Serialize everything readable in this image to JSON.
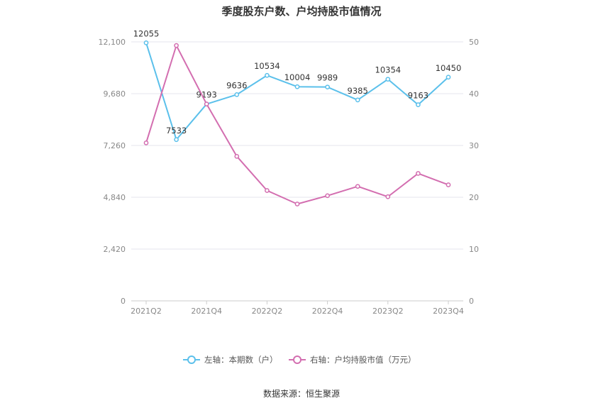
{
  "chart_data": {
    "type": "line",
    "title": "季度股东户数、户均持股市值情况",
    "categories": [
      "2021Q2",
      "2021Q3",
      "2021Q4",
      "2022Q1",
      "2022Q2",
      "2022Q3",
      "2022Q4",
      "2023Q1",
      "2023Q2",
      "2023Q3",
      "2023Q4"
    ],
    "x_tick_labels": [
      "2021Q2",
      "2021Q4",
      "2022Q2",
      "2022Q4",
      "2023Q2",
      "2023Q4"
    ],
    "left_axis": {
      "ylim": [
        0,
        12100
      ],
      "ticks": [
        "0",
        "2,420",
        "4,840",
        "7,260",
        "9,680",
        "12,100"
      ]
    },
    "right_axis": {
      "ylim": [
        0,
        50
      ],
      "ticks": [
        "0",
        "10",
        "20",
        "30",
        "40",
        "50"
      ]
    },
    "series": [
      {
        "name": "左轴：本期数（户）",
        "axis": "left",
        "color": "#5bc0eb",
        "values": [
          12055,
          7533,
          9193,
          9636,
          10534,
          10004,
          9989,
          9385,
          10354,
          9163,
          10450
        ],
        "labels": [
          "12055",
          "7533",
          "9193",
          "9636",
          "10534",
          "10004",
          "9989",
          "9385",
          "10354",
          "9163",
          "10450"
        ]
      },
      {
        "name": "右轴：户均持股市值（万元）",
        "axis": "right",
        "color": "#d36eb0",
        "values": [
          30.5,
          49.3,
          38.0,
          27.9,
          21.3,
          18.7,
          20.3,
          22.1,
          20.1,
          24.6,
          22.4
        ]
      }
    ],
    "legend_position": "bottom",
    "grid": true
  },
  "source": "数据来源：恒生聚源"
}
